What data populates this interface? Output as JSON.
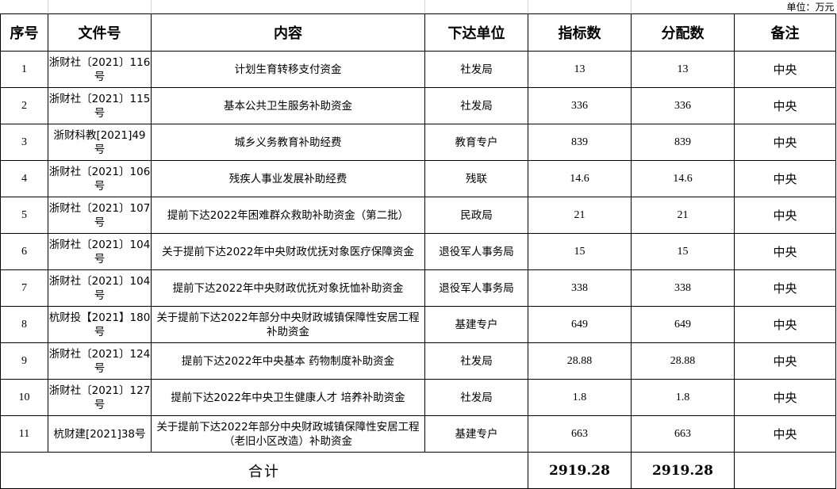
{
  "unit_label": "单位：万元",
  "headers": [
    "序号",
    "文件号",
    "内容",
    "下达单位",
    "指标数",
    "分配数",
    "备注"
  ],
  "rows": [
    {
      "no": "1",
      "doc": "浙财社〔2021〕116号",
      "content": "计划生育转移支付资金",
      "unit": "社发局",
      "target": "13",
      "allocated": "13",
      "note": "中央"
    },
    {
      "no": "2",
      "doc": "浙财社〔2021〕115号",
      "content": "基本公共卫生服务补助资金",
      "unit": "社发局",
      "target": "336",
      "allocated": "336",
      "note": "中央"
    },
    {
      "no": "3",
      "doc": "浙财科教[2021]49号",
      "content": "城乡义务教育补助经费",
      "unit": "教育专户",
      "target": "839",
      "allocated": "839",
      "note": "中央"
    },
    {
      "no": "4",
      "doc": "浙财社〔2021〕106号",
      "content": "残疾人事业发展补助经费",
      "unit": "残联",
      "target": "14.6",
      "allocated": "14.6",
      "note": "中央"
    },
    {
      "no": "5",
      "doc": "浙财社〔2021〕107号",
      "content": "提前下达2022年困难群众救助补助资金（第二批）",
      "unit": "民政局",
      "target": "21",
      "allocated": "21",
      "note": "中央"
    },
    {
      "no": "6",
      "doc": "浙财社〔2021〕104号",
      "content": "关于提前下达2022年中央财政优抚对象医疗保障资金",
      "unit": "退役军人事务局",
      "target": "15",
      "allocated": "15",
      "note": "中央"
    },
    {
      "no": "7",
      "doc": "浙财社〔2021〕104号",
      "content": "提前下达2022年中央财政优抚对象抚恤补助资金",
      "unit": "退役军人事务局",
      "target": "338",
      "allocated": "338",
      "note": "中央"
    },
    {
      "no": "8",
      "doc": "杭财投【2021】180号",
      "content": "关于提前下达2022年部分中央财政城镇保障性安居工程补助资金",
      "unit": "基建专户",
      "target": "649",
      "allocated": "649",
      "note": "中央"
    },
    {
      "no": "9",
      "doc": "浙财社〔2021〕124号",
      "content": "提前下达2022年中央基本  药物制度补助资金",
      "unit": "社发局",
      "target": "28.88",
      "allocated": "28.88",
      "note": "中央"
    },
    {
      "no": "10",
      "doc": "浙财社〔2021〕127号",
      "content": "提前下达2022年中央卫生健康人才  培养补助资金",
      "unit": "社发局",
      "target": "1.8",
      "allocated": "1.8",
      "note": "中央"
    },
    {
      "no": "11",
      "doc": "杭财建[2021]38号",
      "content": "关于提前下达2022年部分中央财政城镇保障性安居工程（老旧小区改造）补助资金",
      "unit": "基建专户",
      "target": "663",
      "allocated": "663",
      "note": "中央"
    }
  ],
  "total": {
    "label": "合计",
    "target": "2919.28",
    "allocated": "2919.28"
  }
}
